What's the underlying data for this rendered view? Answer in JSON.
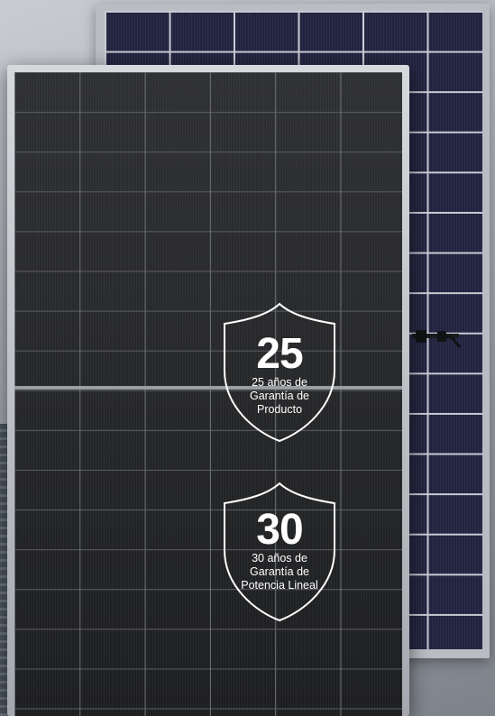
{
  "badges": [
    {
      "number": "25",
      "caption_lines": [
        "25 años de",
        "Garantía de",
        "Producto"
      ]
    },
    {
      "number": "30",
      "caption_lines": [
        "30 años de",
        "Garantía de",
        "Potencia Lineal"
      ]
    }
  ],
  "colors": {
    "front_cells": "#262729",
    "back_cells": "#22233f",
    "frame": "#c9ccd3",
    "badge_outline": "#ffffff"
  }
}
